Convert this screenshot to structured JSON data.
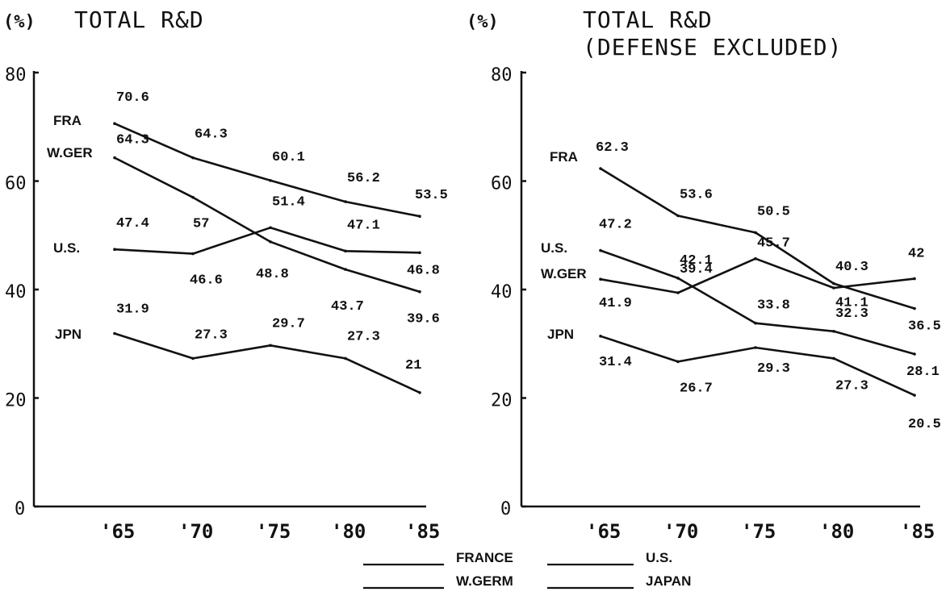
{
  "chart_data": [
    {
      "type": "line",
      "title": "TOTAL R&D",
      "unit_label": "(%)",
      "x": [
        "'65",
        "'70",
        "'75",
        "'80",
        "'85"
      ],
      "ylim": [
        0,
        80
      ],
      "yticks": [
        "0",
        "20",
        "40",
        "60",
        "80"
      ],
      "grid": false,
      "series": [
        {
          "name": "FRA",
          "values": [
            70.6,
            64.3,
            60.1,
            56.2,
            53.5
          ],
          "labels": [
            "70.6",
            "64.3",
            "60.1",
            "56.2",
            "53.5"
          ]
        },
        {
          "name": "W.GER",
          "values": [
            64.3,
            57,
            48.8,
            43.7,
            39.6
          ],
          "labels": [
            "64.3",
            "57",
            "48.8",
            "43.7",
            "39.6"
          ]
        },
        {
          "name": "U.S.",
          "values": [
            47.4,
            46.6,
            51.4,
            47.1,
            46.8
          ],
          "labels": [
            "47.4",
            "46.6",
            "51.4",
            "47.1",
            "46.8"
          ]
        },
        {
          "name": "JPN",
          "values": [
            31.9,
            27.3,
            29.7,
            27.3,
            21
          ],
          "labels": [
            "31.9",
            "27.3",
            "29.7",
            "27.3",
            "21"
          ]
        }
      ]
    },
    {
      "type": "line",
      "title": "TOTAL R&D",
      "subtitle": "(DEFENSE EXCLUDED)",
      "unit_label": "(%)",
      "x": [
        "'65",
        "'70",
        "'75",
        "'80",
        "'85"
      ],
      "ylim": [
        0,
        80
      ],
      "yticks": [
        "0",
        "20",
        "40",
        "60",
        "80"
      ],
      "grid": false,
      "series": [
        {
          "name": "FRA",
          "values": [
            62.3,
            53.6,
            50.5,
            41.1,
            36.5
          ],
          "labels": [
            "62.3",
            "53.6",
            "50.5",
            "41.1",
            "36.5"
          ]
        },
        {
          "name": "U.S.",
          "values": [
            47.2,
            42.1,
            33.8,
            32.3,
            28.1
          ],
          "labels": [
            "47.2",
            "42.1",
            "33.8",
            "32.3",
            "28.1"
          ]
        },
        {
          "name": "W.GER",
          "values": [
            41.9,
            39.4,
            45.7,
            40.3,
            42
          ],
          "labels": [
            "41.9",
            "39.4",
            "45.7",
            "40.3",
            "42"
          ]
        },
        {
          "name": "JPN",
          "values": [
            31.4,
            26.7,
            29.3,
            27.3,
            20.5
          ],
          "labels": [
            "31.4",
            "26.7",
            "29.3",
            "27.3",
            "20.5"
          ]
        }
      ]
    }
  ],
  "legend": {
    "placement": "bottom-center",
    "entries": [
      "FRANCE",
      "U.S.",
      "W.GERM",
      "JAPAN"
    ]
  }
}
